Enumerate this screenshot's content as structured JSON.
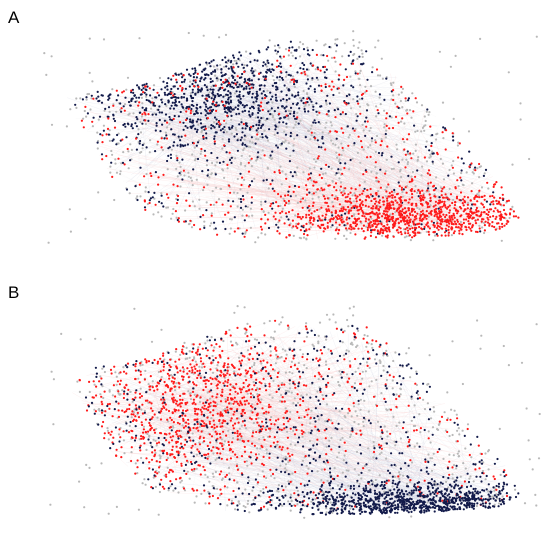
{
  "panels": [
    {
      "label": "A"
    },
    {
      "label": "B"
    }
  ],
  "colors": {
    "red": "#ff1a1a",
    "navy": "#121a4a",
    "gray": "#b9b9b9",
    "edge_red": "#f6b7b7",
    "edge_navy": "#b9bdd6",
    "edge_gray": "#e6e6ea"
  }
}
